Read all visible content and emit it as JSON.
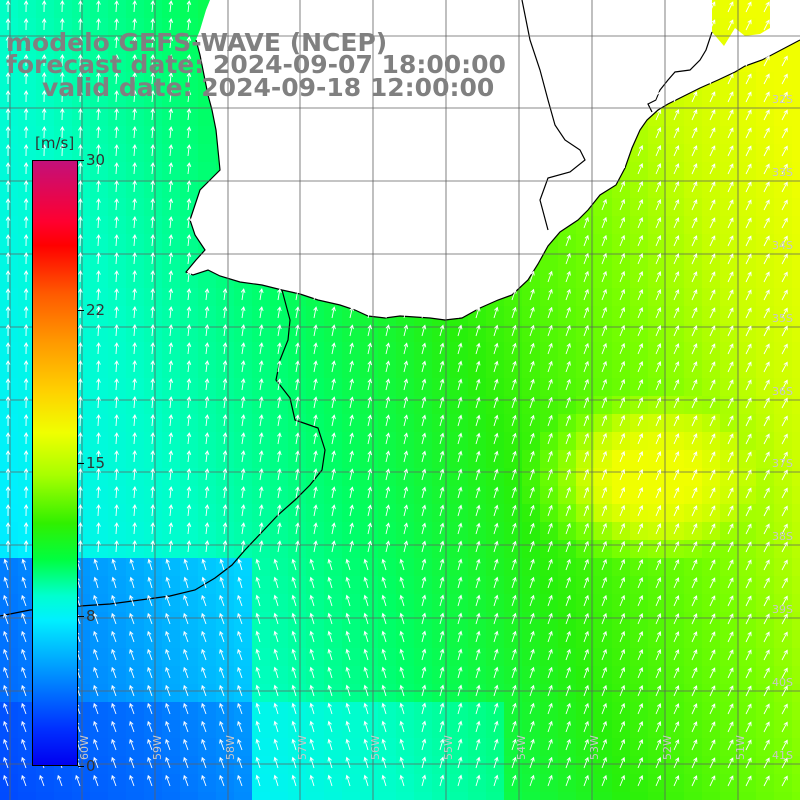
{
  "title": {
    "line1": "modelo GEFS-WAVE (NCEP)",
    "line2": "forecast date: 2024-09-07 18:00:00",
    "line3": "valid date: 2024-09-18 12:00:00"
  },
  "colorbar": {
    "unit": "[m/s]",
    "ticks": [
      {
        "label": "30",
        "value": 30
      },
      {
        "label": "22",
        "value": 22
      },
      {
        "label": "15",
        "value": 15
      },
      {
        "label": "8",
        "value": 8
      },
      {
        "label": "0",
        "value": 0
      }
    ],
    "min": 0,
    "max": 30
  },
  "map": {
    "lat_labels": [
      "32S",
      "33S",
      "34S",
      "35S",
      "36S",
      "37S",
      "38S",
      "39S",
      "40S",
      "41S"
    ],
    "lon_labels": [
      "60W",
      "59W",
      "58W",
      "57W",
      "56W",
      "55W",
      "54W",
      "53W",
      "52W",
      "51W"
    ],
    "colors": {
      "land": "#ffffff",
      "coast": "#000000",
      "grid": "#606060",
      "arrow": "#ffffff"
    }
  }
}
